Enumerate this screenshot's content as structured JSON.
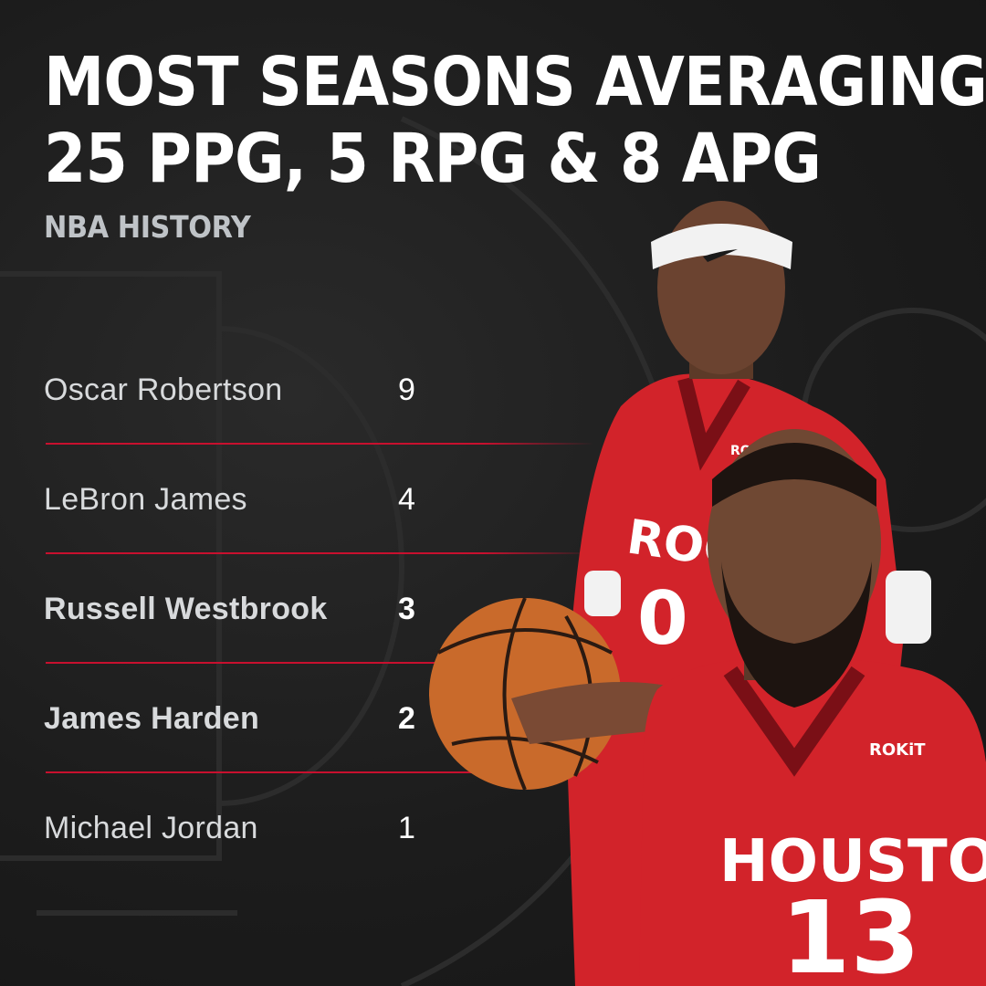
{
  "headline": {
    "line1": "MOST SEASONS AVERAGING",
    "line2": "25 PPG, 5 RPG & 8 APG"
  },
  "subtitle": "NBA HISTORY",
  "rankings": [
    {
      "name": "Oscar Robertson",
      "value": "9"
    },
    {
      "name": "LeBron James",
      "value": "4"
    },
    {
      "name": "Russell Westbrook",
      "value": "3"
    },
    {
      "name": "James Harden",
      "value": "2"
    },
    {
      "name": "Michael Jordan",
      "value": "1"
    }
  ],
  "photo": {
    "jersey_back": {
      "team": "ROCKETS",
      "number": "0",
      "sponsor": "ROKiT"
    },
    "jersey_front": {
      "team": "HOUSTON",
      "number": "13",
      "sponsor": "ROKiT"
    }
  },
  "colors": {
    "background": "#1f1f1f",
    "accent": "#c8102e",
    "headline": "#ffffff",
    "subtitle": "#bfc3c7"
  }
}
